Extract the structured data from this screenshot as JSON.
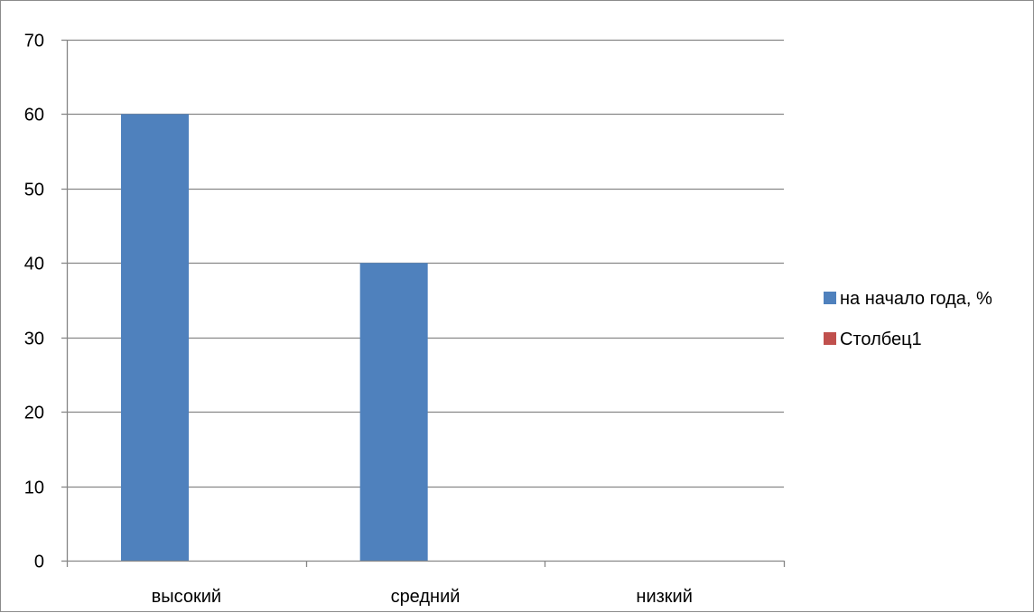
{
  "chart_data": {
    "type": "bar",
    "title": "",
    "xlabel": "",
    "ylabel": "",
    "categories": [
      "высокий",
      "средний",
      "низкий"
    ],
    "series": [
      {
        "name": "на начало года, %",
        "color": "#4f81bd",
        "values": [
          60,
          40,
          0
        ]
      },
      {
        "name": "Столбец1",
        "color": "#c0504d",
        "values": [
          0,
          0,
          0
        ]
      }
    ],
    "ylim": [
      0,
      70
    ],
    "yticks": [
      0,
      10,
      20,
      30,
      40,
      50,
      60,
      70
    ],
    "grid": true,
    "legend_position": "right",
    "gridline_color": "#868686",
    "axis_color": "#868686"
  }
}
